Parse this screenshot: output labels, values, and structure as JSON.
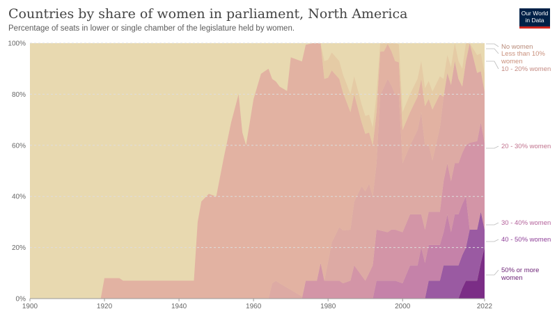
{
  "title": "Countries by share of women in parliament, North America",
  "subtitle": "Percentage of seats in lower or single chamber of the legislature held by women.",
  "logo": {
    "line1": "Our World",
    "line2": "in Data"
  },
  "colors": {
    "background_fill": "#e8d9b0",
    "no_women": "#e5cba5",
    "less_than_10": "#e2b2a2",
    "10_20": "#ddaaa4",
    "20_30": "#d395a7",
    "30_40": "#c582a9",
    "40_50": "#9a5aa2",
    "50_plus": "#7b2d86"
  },
  "chart_data": {
    "type": "area",
    "stacked": true,
    "percent_stacked": true,
    "title": "Countries by share of women in parliament, North America",
    "subtitle": "Percentage of seats in lower or single chamber of the legislature held by women.",
    "xlim": [
      1900,
      2022
    ],
    "ylim": [
      0,
      100
    ],
    "x_ticks": [
      1900,
      1920,
      1940,
      1960,
      1980,
      2000,
      2022
    ],
    "y_ticks": [
      "0%",
      "20%",
      "40%",
      "60%",
      "80%",
      "100%"
    ],
    "grid": "horizontal",
    "legend": "right",
    "series": [
      {
        "name": "50% or more women",
        "color": "#7b2d86",
        "points": [
          [
            1900,
            0
          ],
          [
            2015,
            0
          ],
          [
            2016,
            4
          ],
          [
            2017,
            7
          ],
          [
            2018,
            7
          ],
          [
            2020,
            7
          ],
          [
            2021,
            14
          ],
          [
            2022,
            20
          ]
        ]
      },
      {
        "name": "40 - 50% women",
        "color": "#9a5aa2",
        "points": [
          [
            1900,
            0
          ],
          [
            2006,
            0
          ],
          [
            2007,
            7
          ],
          [
            2010,
            7
          ],
          [
            2011,
            13
          ],
          [
            2017,
            13
          ],
          [
            2018,
            20
          ],
          [
            2021,
            20
          ],
          [
            2022,
            7
          ]
        ]
      },
      {
        "name": "30 - 40% women",
        "color": "#c582a9",
        "points": [
          [
            1900,
            0
          ],
          [
            1992,
            0
          ],
          [
            1993,
            7
          ],
          [
            1998,
            7
          ],
          [
            2000,
            6
          ],
          [
            2002,
            13
          ],
          [
            2004,
            13
          ],
          [
            2005,
            20
          ],
          [
            2006,
            14
          ],
          [
            2010,
            14
          ],
          [
            2011,
            13
          ],
          [
            2012,
            20
          ],
          [
            2013,
            13
          ],
          [
            2014,
            20
          ],
          [
            2017,
            20
          ],
          [
            2018,
            0
          ],
          [
            2021,
            0
          ],
          [
            2022,
            0
          ]
        ]
      },
      {
        "name": "20 - 30% women",
        "color": "#d395a7",
        "points": [
          [
            1900,
            0
          ],
          [
            1973,
            0
          ],
          [
            1974,
            7
          ],
          [
            1977,
            7
          ],
          [
            1978,
            14
          ],
          [
            1979,
            7
          ],
          [
            1983,
            7
          ],
          [
            1984,
            6
          ],
          [
            1986,
            7
          ],
          [
            1987,
            13
          ],
          [
            1990,
            7
          ],
          [
            1992,
            13
          ],
          [
            1993,
            20
          ],
          [
            1996,
            19
          ],
          [
            1997,
            20
          ],
          [
            1999,
            20
          ],
          [
            2000,
            20
          ],
          [
            2004,
            20
          ],
          [
            2005,
            13
          ],
          [
            2010,
            13
          ],
          [
            2011,
            20
          ],
          [
            2014,
            20
          ],
          [
            2015,
            20
          ],
          [
            2017,
            20
          ],
          [
            2018,
            34
          ],
          [
            2021,
            35
          ],
          [
            2022,
            34
          ]
        ]
      },
      {
        "name": "10 - 20% women",
        "color": "#ddaaa4",
        "points": [
          [
            1900,
            0
          ],
          [
            1964,
            0
          ],
          [
            1965,
            6
          ],
          [
            1966,
            7
          ],
          [
            1967,
            6
          ],
          [
            1974,
            0
          ],
          [
            1978,
            0
          ],
          [
            1979,
            0
          ],
          [
            1981,
            15
          ],
          [
            1983,
            21
          ],
          [
            1986,
            20
          ],
          [
            1987,
            25
          ],
          [
            1989,
            35
          ],
          [
            1991,
            35
          ],
          [
            1992,
            27
          ],
          [
            1993,
            26
          ],
          [
            1994,
            53
          ],
          [
            1996,
            60
          ],
          [
            1998,
            53
          ],
          [
            1999,
            53
          ],
          [
            2000,
            27
          ],
          [
            2002,
            27
          ],
          [
            2004,
            33
          ],
          [
            2005,
            40
          ],
          [
            2006,
            33
          ],
          [
            2008,
            20
          ],
          [
            2010,
            33
          ],
          [
            2011,
            33
          ],
          [
            2014,
            40
          ],
          [
            2016,
            26
          ],
          [
            2018,
            40
          ],
          [
            2021,
            20
          ],
          [
            2022,
            20
          ]
        ]
      },
      {
        "name": "Less than 10% women",
        "color": "#e2b2a2",
        "points": [
          [
            1900,
            0
          ],
          [
            1919,
            0
          ],
          [
            1920,
            8
          ],
          [
            1924,
            8
          ],
          [
            1925,
            7
          ],
          [
            1930,
            7
          ],
          [
            1932,
            7
          ],
          [
            1944,
            7
          ],
          [
            1945,
            30
          ],
          [
            1946,
            38
          ],
          [
            1948,
            41
          ],
          [
            1950,
            40
          ],
          [
            1952,
            55
          ],
          [
            1954,
            69
          ],
          [
            1956,
            80
          ],
          [
            1957,
            65
          ],
          [
            1958,
            60
          ],
          [
            1960,
            78
          ],
          [
            1962,
            88
          ],
          [
            1964,
            90
          ],
          [
            1965,
            80
          ],
          [
            1966,
            78
          ],
          [
            1967,
            77
          ],
          [
            1969,
            77
          ],
          [
            1970,
            91
          ],
          [
            1973,
            92
          ],
          [
            1976,
            93
          ],
          [
            1977,
            93
          ],
          [
            1978,
            86
          ],
          [
            1980,
            72
          ],
          [
            1983,
            58
          ],
          [
            1985,
            50
          ],
          [
            1987,
            42
          ],
          [
            1989,
            25
          ],
          [
            1991,
            20
          ],
          [
            1993,
            20
          ],
          [
            1995,
            14
          ],
          [
            1998,
            13
          ],
          [
            2000,
            13
          ],
          [
            2003,
            13
          ],
          [
            2005,
            13
          ],
          [
            2008,
            20
          ],
          [
            2010,
            13
          ],
          [
            2011,
            0
          ],
          [
            2013,
            0
          ],
          [
            2016,
            0
          ],
          [
            2018,
            0
          ],
          [
            2022,
            0
          ]
        ]
      },
      {
        "name": "No women",
        "color": "#e5cba5",
        "points": [
          [
            1900,
            0
          ],
          [
            1977,
            0
          ],
          [
            1978,
            7
          ],
          [
            1985,
            7
          ],
          [
            2000,
            7
          ],
          [
            2014,
            7
          ],
          [
            2016,
            7
          ],
          [
            2022,
            7
          ]
        ]
      }
    ],
    "legend_labels": [
      "No women",
      "Less than 10% women",
      "10 - 20% women",
      "20 - 30% women",
      "30 - 40% women",
      "40 - 50% women",
      "50% or more women"
    ]
  }
}
